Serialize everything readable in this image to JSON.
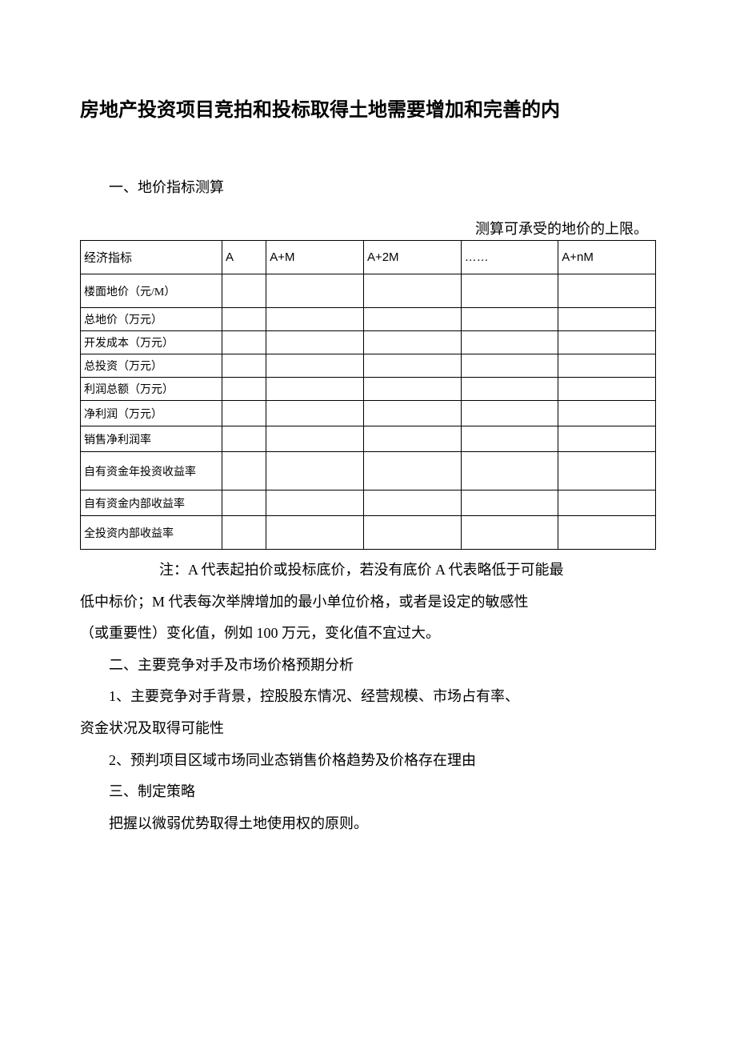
{
  "title": "房地产投资项目竞拍和投标取得土地需要增加和完善的内",
  "section1_heading": "一、地价指标测算",
  "table_caption": "测算可承受的地价的上限。",
  "table": {
    "columns": [
      "经济指标",
      "A",
      "A+M",
      "A+2M",
      "……",
      "A+nM"
    ],
    "rows": [
      "楼面地价（元/M）",
      "总地价（万元）",
      "开发成本（万元）",
      "总投资（万元）",
      "利润总额（万元）",
      "净利润（万元）",
      "销售净利润率",
      "自有资金年投资收益率",
      "自有资金内部收益率",
      "全投资内部收益率"
    ],
    "border_color": "#000000",
    "font_size_header": 15,
    "font_size_cell": 14
  },
  "note_line1_lead": "注：",
  "note_line1_rest": "A 代表起拍价或投标底价，若没有底价 A 代表略低于可能最",
  "note_line2": "低中标价；M 代表每次举牌增加的最小单位价格，或者是设定的敏感性",
  "note_line3": "（或重要性）变化值，例如 100 万元，变化值不宜过大。",
  "section2_heading": "二、主要竞争对手及市场价格预期分析",
  "section2_item1": "1、主要竞争对手背景，控股股东情况、经营规模、市场占有率、",
  "section2_item1_cont": "资金状况及取得可能性",
  "section2_item2": "2、预判项目区域市场同业态销售价格趋势及价格存在理由",
  "section3_heading": "三、制定策略",
  "section3_body": "把握以微弱优势取得土地使用权的原则。",
  "colors": {
    "text": "#000000",
    "background": "#ffffff",
    "border": "#000000"
  }
}
